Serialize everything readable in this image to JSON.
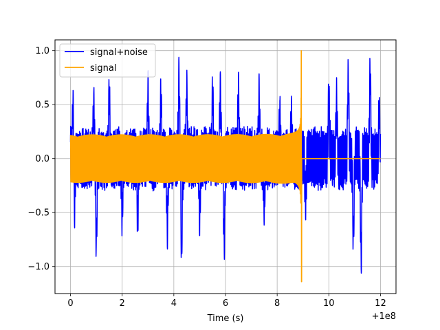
{
  "chart_data": {
    "type": "line",
    "title": "",
    "xlabel": "Time (s)",
    "ylabel": "",
    "x_offset_label": "+1e8",
    "xlim": [
      -0.6,
      12.6
    ],
    "ylim": [
      -1.25,
      1.1
    ],
    "x_ticks": [
      0,
      2,
      4,
      6,
      8,
      10,
      12
    ],
    "x_tick_labels": [
      "0",
      "2",
      "4",
      "6",
      "8",
      "10",
      "12"
    ],
    "y_ticks": [
      -1.0,
      -0.5,
      0.0,
      0.5,
      1.0
    ],
    "y_tick_labels": [
      "−1.0",
      "−0.5",
      "0.0",
      "0.5",
      "1.0"
    ],
    "grid": true,
    "legend_position": "upper-left",
    "series": [
      {
        "name": "signal+noise",
        "color": "#0000ff",
        "description": "noisy strain data spanning 0 to 12",
        "x_range": [
          0,
          12
        ],
        "envelope_peaks": [
          [
            0.1,
            0.68
          ],
          [
            0.15,
            -0.62
          ],
          [
            0.9,
            0.62
          ],
          [
            1.0,
            -0.93
          ],
          [
            1.5,
            0.72
          ],
          [
            2.0,
            -0.62
          ],
          [
            2.6,
            -0.65
          ],
          [
            3.0,
            0.75
          ],
          [
            3.5,
            0.68
          ],
          [
            3.75,
            -0.78
          ],
          [
            4.2,
            0.9
          ],
          [
            4.3,
            -1.02
          ],
          [
            4.5,
            0.78
          ],
          [
            5.0,
            -0.66
          ],
          [
            5.5,
            0.72
          ],
          [
            5.8,
            0.75
          ],
          [
            5.95,
            -0.93
          ],
          [
            6.5,
            0.78
          ],
          [
            7.3,
            0.7
          ],
          [
            7.5,
            -0.56
          ],
          [
            8.1,
            0.5
          ],
          [
            8.55,
            0.48
          ],
          [
            9.1,
            -0.46
          ],
          [
            10.0,
            0.73
          ],
          [
            10.3,
            0.63
          ],
          [
            10.75,
            0.9
          ],
          [
            10.95,
            -0.86
          ],
          [
            11.25,
            -1.1
          ],
          [
            11.6,
            0.95
          ],
          [
            11.95,
            0.52
          ]
        ]
      },
      {
        "name": "signal",
        "color": "#ffa500",
        "description": "chirp with amplitude ~0.22 growing to merger near t=8.93, then ~0",
        "x_range": [
          0,
          12
        ],
        "amplitude_start": 0.22,
        "merger_time": 8.93,
        "peak_max": 1.0,
        "peak_min": -1.14
      }
    ]
  }
}
